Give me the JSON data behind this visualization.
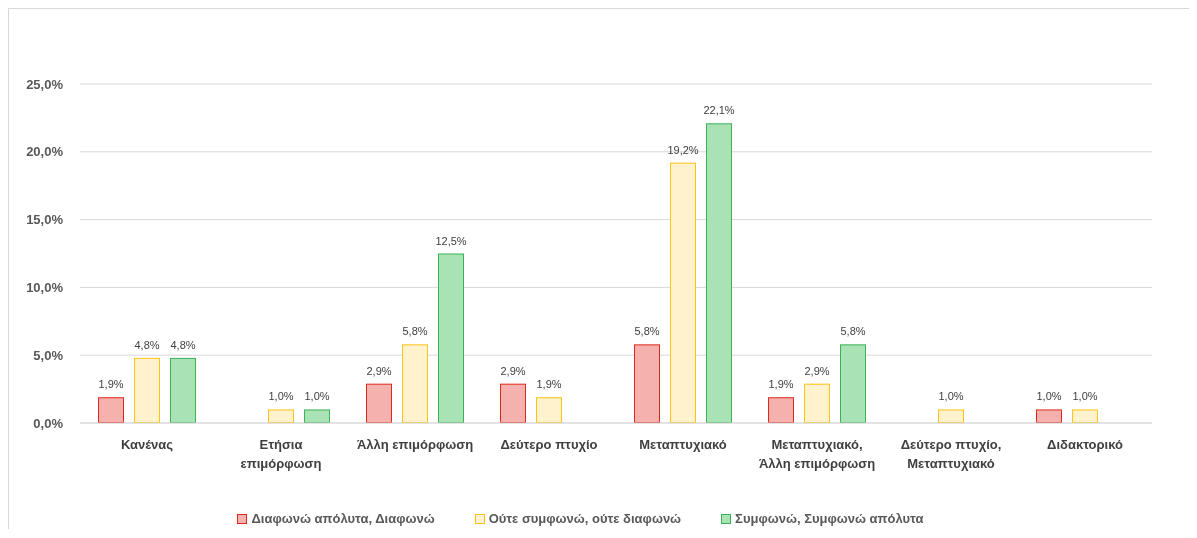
{
  "chart_data": {
    "type": "bar",
    "categories": [
      "Κανένας",
      "Ετήσια επιμόρφωση",
      "Άλλη επιμόρφωση",
      "Δεύτερο πτυχίο",
      "Μεταπτυχιακό",
      "Μεταπτυχιακό, Άλλη επιμόρφωση",
      "Δεύτερο πτυχίο, Μεταπτυχιακό",
      "Διδακτορικό"
    ],
    "series": [
      {
        "name": "Διαφωνώ απόλυτα, Διαφωνώ",
        "color": "#f4b1ad",
        "values": [
          1.9,
          null,
          2.9,
          2.9,
          5.8,
          1.9,
          null,
          1.0
        ],
        "value_labels": [
          "1,9%",
          null,
          "2,9%",
          "2,9%",
          "5,8%",
          "1,9%",
          null,
          "1,0%"
        ]
      },
      {
        "name": "Ούτε συμφωνώ, ούτε διαφωνώ",
        "color": "#fff2cc",
        "values": [
          4.8,
          1.0,
          5.8,
          1.9,
          19.2,
          2.9,
          1.0,
          1.0
        ],
        "value_labels": [
          "4,8%",
          "1,0%",
          "5,8%",
          "1,9%",
          "19,2%",
          "2,9%",
          "1,0%",
          "1,0%"
        ]
      },
      {
        "name": "Συμφωνώ, Συμφωνώ απόλυτα",
        "color": "#a8e2b5",
        "values": [
          4.8,
          1.0,
          12.5,
          null,
          22.1,
          5.8,
          null,
          null
        ],
        "value_labels": [
          "4,8%",
          "1,0%",
          "12,5%",
          null,
          "22,1%",
          "5,8%",
          null,
          null
        ]
      }
    ],
    "ylim": [
      0,
      25
    ],
    "yticks": [
      {
        "value": 0,
        "label": "0,0%"
      },
      {
        "value": 5,
        "label": "5,0%"
      },
      {
        "value": 10,
        "label": "10,0%"
      },
      {
        "value": 15,
        "label": "15,0%"
      },
      {
        "value": 20,
        "label": "20,0%"
      },
      {
        "value": 25,
        "label": "25,0%"
      }
    ],
    "grid": "y",
    "legend": "bottom"
  }
}
